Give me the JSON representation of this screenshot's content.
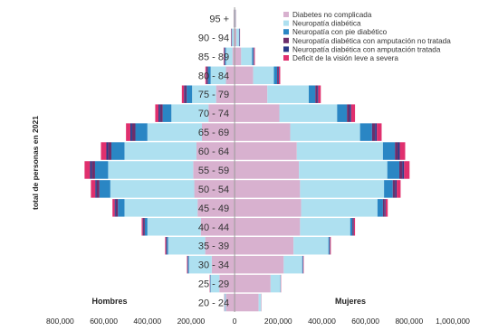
{
  "chart_data": {
    "type": "bar",
    "orientation": "horizontal",
    "ylabel": "total de personas en 2021",
    "side_labels": {
      "left": "Hombres",
      "right": "Mujeres"
    },
    "x_ticks": [
      "800,000",
      "600,000",
      "400,000",
      "200,000",
      "0",
      "200,000",
      "400,000",
      "600,000",
      "800,000",
      "1,000,000"
    ],
    "x_tick_values": [
      -800000,
      -600000,
      -400000,
      -200000,
      0,
      200000,
      400000,
      600000,
      800000,
      1000000
    ],
    "xlim": [
      -810000,
      1000000
    ],
    "legend_position": "top-right",
    "categories": [
      "95 +",
      "90 - 94",
      "85 - 89",
      "80 - 84",
      "75 - 79",
      "70 - 74",
      "65 - 69",
      "60 - 64",
      "55 - 59",
      "50 - 54",
      "45 - 49",
      "40 - 44",
      "35 - 39",
      "30 - 34",
      "25 - 29",
      "20 - 24"
    ],
    "series": [
      {
        "name": "Diabetes no complicada",
        "color": "#d8b1cf",
        "men": [
          1000,
          4000,
          10000,
          40000,
          85000,
          120000,
          150000,
          175000,
          190000,
          185000,
          170000,
          155000,
          135000,
          105000,
          70000,
          40000
        ],
        "women": [
          2000,
          8000,
          30000,
          85000,
          150000,
          205000,
          255000,
          285000,
          295000,
          300000,
          305000,
          300000,
          270000,
          225000,
          165000,
          110000
        ]
      },
      {
        "name": "Neuropatía diabética",
        "color": "#aee0f0",
        "men": [
          1000,
          8000,
          30000,
          70000,
          110000,
          170000,
          250000,
          330000,
          390000,
          385000,
          335000,
          245000,
          170000,
          105000,
          40000,
          5000
        ],
        "women": [
          2000,
          12000,
          50000,
          95000,
          190000,
          265000,
          320000,
          395000,
          405000,
          385000,
          350000,
          230000,
          160000,
          85000,
          45000,
          10000
        ]
      },
      {
        "name": "Neuropatía con pie diabético",
        "color": "#2a86c4",
        "men": [
          500,
          2000,
          5000,
          12000,
          25000,
          40000,
          55000,
          60000,
          60000,
          50000,
          30000,
          12000,
          6000,
          4000,
          2000,
          1000
        ],
        "women": [
          500,
          2000,
          6000,
          15000,
          30000,
          45000,
          55000,
          55000,
          55000,
          40000,
          25000,
          10000,
          5000,
          3000,
          1000,
          500
        ]
      },
      {
        "name": "Neuropatía diabética con amputación no tratada",
        "color": "#6d2e6b",
        "men": [
          500,
          1000,
          2000,
          4000,
          7000,
          12000,
          15000,
          15000,
          15000,
          12000,
          10000,
          6000,
          3000,
          2000,
          1000,
          500
        ],
        "women": [
          500,
          1000,
          2000,
          5000,
          8000,
          12000,
          14000,
          14000,
          14000,
          12000,
          8000,
          5000,
          2000,
          1000,
          500,
          500
        ]
      },
      {
        "name": "Neuropatía diabética con amputación tratada",
        "color": "#293a88",
        "men": [
          300,
          800,
          1500,
          3000,
          5000,
          7000,
          8000,
          8000,
          8000,
          7000,
          5000,
          3000,
          1500,
          1000,
          500,
          300
        ],
        "women": [
          300,
          800,
          1500,
          3000,
          5000,
          7000,
          8000,
          8000,
          8000,
          6000,
          4000,
          2000,
          1000,
          500,
          300,
          300
        ]
      },
      {
        "name": "Deficit de la visión leve a severa",
        "color": "#e0306e",
        "men": [
          500,
          1000,
          2000,
          5000,
          10000,
          15000,
          20000,
          25000,
          25000,
          20000,
          10000,
          5000,
          3000,
          2000,
          1000,
          500
        ],
        "women": [
          500,
          1000,
          3000,
          6000,
          12000,
          18000,
          22000,
          25000,
          25000,
          18000,
          10000,
          5000,
          3000,
          2000,
          1000,
          500
        ]
      }
    ]
  }
}
